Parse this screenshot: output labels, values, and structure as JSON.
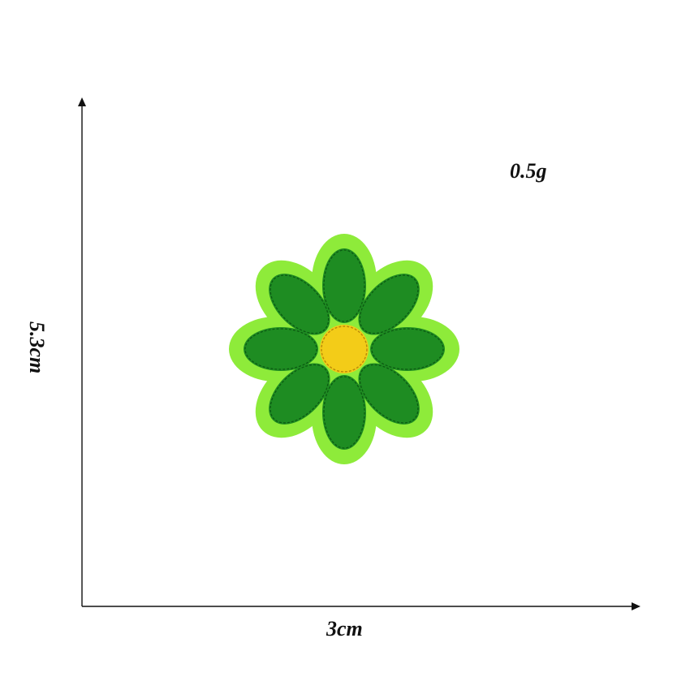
{
  "measurements": {
    "weight": "0.5g",
    "width": "3cm",
    "height": "5.3cm"
  },
  "product": {
    "name": "green-daisy-embroidered-patch",
    "petal_count": 8,
    "colors": {
      "border": "#8EEB3A",
      "petal": "#1E8C22",
      "petal_stitch": "#0C5A12",
      "center": "#F3CC18",
      "center_stitch": "#B88A0A"
    }
  },
  "axes": {
    "color": "#111111"
  }
}
